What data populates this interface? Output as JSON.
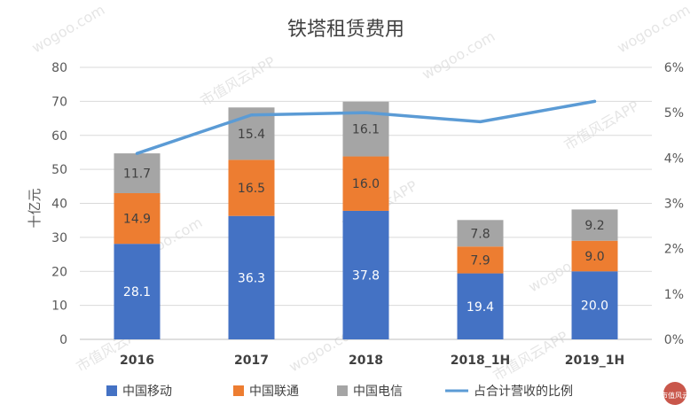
{
  "chart_data": {
    "type": "bar",
    "stacked": true,
    "title": "铁塔租赁费用",
    "xlabel": "",
    "ylabel": "十亿元",
    "categories": [
      "2016",
      "2017",
      "2018",
      "2018_1H",
      "2019_1H"
    ],
    "ylim": [
      0,
      80
    ],
    "yticks": [
      0,
      10,
      20,
      30,
      40,
      50,
      60,
      70,
      80
    ],
    "y2lim": [
      0,
      6
    ],
    "y2ticks": [
      "0%",
      "1%",
      "2%",
      "3%",
      "4%",
      "5%",
      "6%"
    ],
    "y2tick_values": [
      0,
      1,
      2,
      3,
      4,
      5,
      6
    ],
    "grid": true,
    "legend_position": "bottom",
    "series": [
      {
        "name": "中国移动",
        "color": "#4472c4",
        "label_color": "#ffffff",
        "values": [
          28.1,
          36.3,
          37.8,
          19.4,
          20.0
        ],
        "labels": [
          "28.1",
          "36.3",
          "37.8",
          "19.4",
          "20.0"
        ]
      },
      {
        "name": "中国联通",
        "color": "#ed7d31",
        "label_color": "#404040",
        "values": [
          14.9,
          16.5,
          16.0,
          7.9,
          9.0
        ],
        "labels": [
          "14.9",
          "16.5",
          "16.0",
          "7.9",
          "9.0"
        ]
      },
      {
        "name": "中国电信",
        "color": "#a5a5a5",
        "label_color": "#404040",
        "values": [
          11.7,
          15.4,
          16.1,
          7.8,
          9.2
        ],
        "labels": [
          "11.7",
          "15.4",
          "16.1",
          "7.8",
          "9.2"
        ]
      }
    ],
    "line_series": {
      "name": "占合计营收的比例",
      "color": "#5b9bd5",
      "axis": "secondary",
      "values": [
        4.1,
        4.95,
        5.0,
        4.8,
        5.25
      ]
    }
  },
  "watermarks": [
    "wogoo.com",
    "市值风云APP"
  ],
  "logo_text": "市值风云"
}
